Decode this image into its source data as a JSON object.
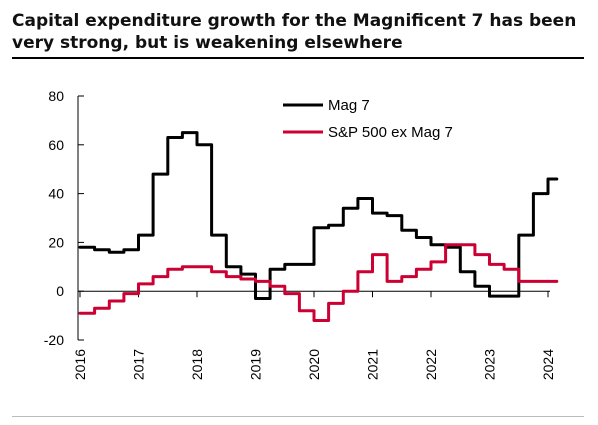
{
  "header": {
    "title_line1": "Capital expenditure growth for the Magnificent 7 has been",
    "title_line2": "very strong, but is weakening elsewhere"
  },
  "chart_data": {
    "type": "line",
    "title": "Capital expenditure growth for the Magnificent 7 has been very strong, but is weakening elsewhere",
    "xlabel": "",
    "ylabel": "",
    "ylim": [
      -20,
      80
    ],
    "yticks": [
      -20,
      0,
      20,
      40,
      60,
      80
    ],
    "xlim": [
      2016,
      2024.4
    ],
    "xticks": [
      "2016",
      "2017",
      "2018",
      "2019",
      "2020",
      "2021",
      "2022",
      "2023",
      "2024"
    ],
    "legend_position": "top-right",
    "grid": false,
    "series": [
      {
        "name": "Mag 7",
        "color": "#000000",
        "x": [
          2016.0,
          2016.25,
          2016.25,
          2016.5,
          2016.5,
          2016.75,
          2016.75,
          2017.0,
          2017.0,
          2017.25,
          2017.25,
          2017.5,
          2017.5,
          2017.75,
          2017.75,
          2018.0,
          2018.0,
          2018.25,
          2018.25,
          2018.5,
          2018.5,
          2018.75,
          2018.75,
          2019.0,
          2019.0,
          2019.25,
          2019.25,
          2019.5,
          2019.5,
          2019.75,
          2019.75,
          2020.0,
          2020.0,
          2020.25,
          2020.25,
          2020.5,
          2020.5,
          2020.75,
          2020.75,
          2021.0,
          2021.0,
          2021.25,
          2021.25,
          2021.5,
          2021.5,
          2021.75,
          2021.75,
          2022.0,
          2022.0,
          2022.25,
          2022.25,
          2022.5,
          2022.5,
          2022.75,
          2022.75,
          2023.0,
          2023.0,
          2023.25,
          2023.25,
          2023.5,
          2023.5,
          2023.75,
          2023.75,
          2024.0,
          2024.0,
          2024.15
        ],
        "values": [
          18,
          18,
          17,
          17,
          16,
          16,
          17,
          17,
          23,
          23,
          48,
          48,
          63,
          63,
          65,
          65,
          60,
          60,
          23,
          23,
          10,
          10,
          7,
          7,
          -3,
          -3,
          9,
          9,
          11,
          11,
          11,
          11,
          26,
          26,
          27,
          27,
          34,
          34,
          38,
          38,
          32,
          32,
          31,
          31,
          25,
          25,
          22,
          22,
          19,
          19,
          18,
          18,
          8,
          8,
          2,
          2,
          -2,
          -2,
          -2,
          -2,
          23,
          23,
          40,
          40,
          46,
          46
        ]
      },
      {
        "name": "S&P 500 ex Mag 7",
        "color": "#cc0033",
        "x": [
          2016.0,
          2016.25,
          2016.25,
          2016.5,
          2016.5,
          2016.75,
          2016.75,
          2017.0,
          2017.0,
          2017.25,
          2017.25,
          2017.5,
          2017.5,
          2017.75,
          2017.75,
          2018.0,
          2018.0,
          2018.25,
          2018.25,
          2018.5,
          2018.5,
          2018.75,
          2018.75,
          2019.0,
          2019.0,
          2019.25,
          2019.25,
          2019.5,
          2019.5,
          2019.75,
          2019.75,
          2020.0,
          2020.0,
          2020.25,
          2020.25,
          2020.5,
          2020.5,
          2020.75,
          2020.75,
          2021.0,
          2021.0,
          2021.25,
          2021.25,
          2021.5,
          2021.5,
          2021.75,
          2021.75,
          2022.0,
          2022.0,
          2022.25,
          2022.25,
          2022.5,
          2022.5,
          2022.75,
          2022.75,
          2023.0,
          2023.0,
          2023.25,
          2023.25,
          2023.5,
          2023.5,
          2023.75,
          2023.75,
          2024.0,
          2024.0,
          2024.15
        ],
        "values": [
          -9,
          -9,
          -7,
          -7,
          -4,
          -4,
          -1,
          -1,
          3,
          3,
          6,
          6,
          9,
          9,
          10,
          10,
          10,
          10,
          8,
          8,
          6,
          6,
          5,
          5,
          4,
          4,
          2,
          2,
          -1,
          -1,
          -8,
          -8,
          -12,
          -12,
          -5,
          -5,
          0,
          0,
          8,
          8,
          15,
          15,
          4,
          4,
          6,
          6,
          9,
          9,
          12,
          12,
          19,
          19,
          19,
          19,
          15,
          15,
          11,
          11,
          9,
          9,
          4,
          4,
          4,
          4,
          4,
          4
        ]
      }
    ]
  }
}
